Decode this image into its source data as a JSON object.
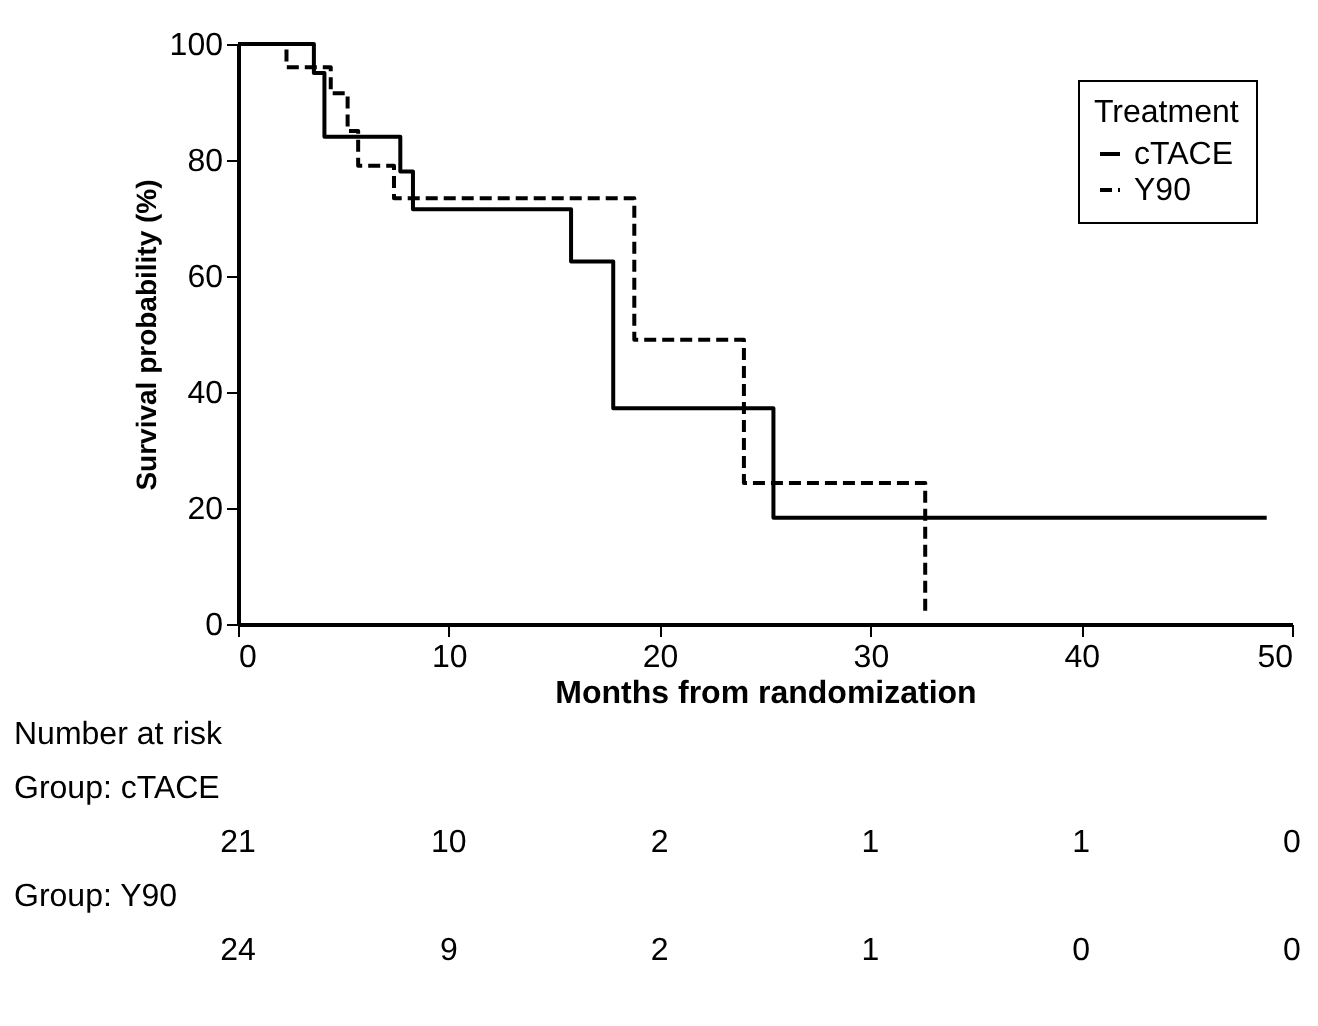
{
  "chart_data": {
    "type": "step",
    "xlabel": "Months from randomization",
    "ylabel": "Survival probability (%)",
    "legend_title": "Treatment",
    "legend": "top right",
    "grid": false,
    "marker": "none",
    "xlim": [
      0,
      50
    ],
    "xticks": [
      0,
      10,
      20,
      30,
      40,
      50
    ],
    "ylim": [
      0,
      100
    ],
    "yticks": [
      0,
      20,
      40,
      60,
      80,
      100
    ],
    "series": [
      {
        "name": "cTACE",
        "color": "#000000",
        "line_style": "solid",
        "x": [
          0,
          3.6,
          4.1,
          7.7,
          8.3,
          15.8,
          17.8,
          25.4,
          48.8
        ],
        "values": [
          100,
          95,
          84,
          78,
          71.5,
          62.5,
          37.2,
          18.3,
          18.3
        ]
      },
      {
        "name": "Y90",
        "color": "#000000",
        "line_style": "dashed",
        "x": [
          0,
          2.3,
          4.4,
          5.2,
          5.7,
          7.4,
          18.8,
          24.0,
          32.6
        ],
        "values": [
          100,
          96,
          91.5,
          85,
          79,
          73.4,
          49,
          24.3,
          2
        ]
      }
    ],
    "annotations": [
      "Number at risk",
      "Group: cTACE",
      "21",
      "10",
      "2",
      "1",
      "1",
      "0",
      "Group: Y90",
      "24",
      "9",
      "2",
      "1",
      "0",
      "0"
    ]
  }
}
